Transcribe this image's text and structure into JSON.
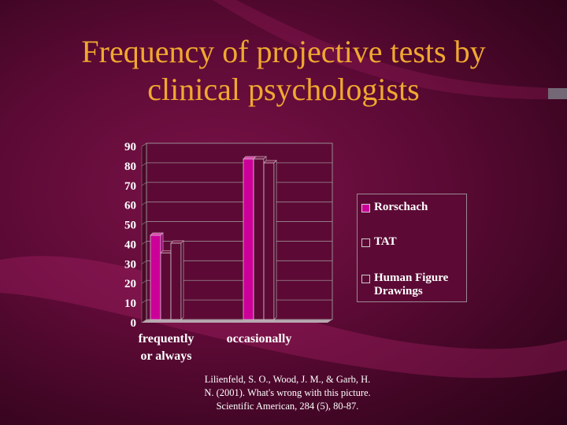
{
  "title_lines": [
    "Frequency of projective tests by",
    "clinical psychologists"
  ],
  "citation_lines": [
    "Lilienfeld, S. O., Wood, J. M., & Garb, H.",
    "N. (2001). What's wrong with this picture.",
    "Scientific American, 284 (5), 80-87."
  ],
  "colors": {
    "accent_title": "#f0a830",
    "rorschach": "#cc0099",
    "tat": "#5c0a35",
    "human_figure": "#5c0a35"
  },
  "chart_data": {
    "type": "bar",
    "title": "",
    "xlabel": "",
    "ylabel": "",
    "categories": [
      [
        "frequently",
        "or always"
      ],
      [
        "occasionally"
      ]
    ],
    "series": [
      {
        "name": "Rorschach",
        "values": [
          43,
          82
        ]
      },
      {
        "name": "TAT",
        "values": [
          34,
          82
        ]
      },
      {
        "name": "Human Figure Drawings",
        "values": [
          39,
          80
        ]
      }
    ],
    "ylim": [
      0,
      90
    ],
    "yticks": [
      "0",
      "10",
      "20",
      "30",
      "40",
      "50",
      "60",
      "70",
      "80",
      "90"
    ],
    "grid": true,
    "legend_position": "right"
  },
  "legend": [
    {
      "lines": [
        "Rorschach"
      ]
    },
    {
      "lines": [
        "TAT"
      ]
    },
    {
      "lines": [
        "Human Figure",
        "Drawings"
      ]
    }
  ]
}
